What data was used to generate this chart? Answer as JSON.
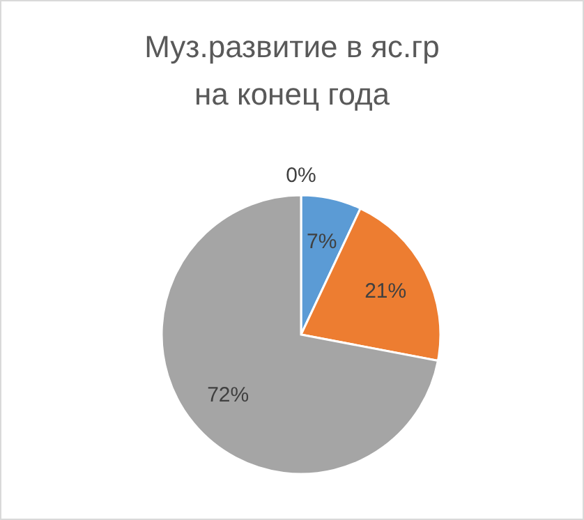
{
  "chart_data": {
    "type": "pie",
    "title": "Муз.развитие в яс.гр на конец года",
    "categories": [
      null,
      null,
      null,
      null
    ],
    "values": [
      7,
      21,
      72,
      0
    ],
    "colors": [
      "#5b9bd5",
      "#ed7d31",
      "#a5a5a5",
      "#ffc000"
    ],
    "value_labels": [
      "7%",
      "21%",
      "72%",
      "0%"
    ]
  }
}
